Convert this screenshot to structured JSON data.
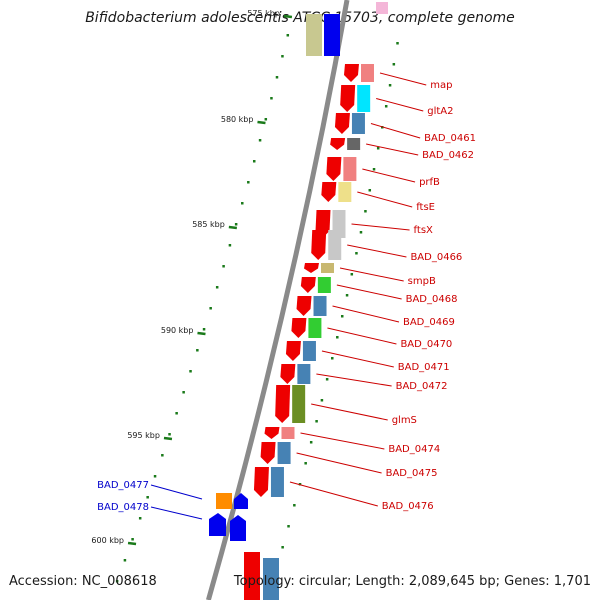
{
  "title": "Bifidobacterium adolescentis ATCC 15703, complete genome",
  "footer": {
    "accession": "Accession: NC_008618",
    "summary": "Topology: circular; Length: 2,089,645 bp; Genes: 1,701"
  },
  "colors": {
    "backbone": "#8a8a8a",
    "forward_label": "#cc0000",
    "reverse_label": "#0000cc",
    "tick": "#1a7a1a",
    "forward_gene": "#ee0000",
    "reverse_gene": "#0000ee"
  },
  "scale": {
    "unit": "kbp",
    "labels": [
      {
        "text": "575 kbp",
        "kbp": 575
      },
      {
        "text": "580 kbp",
        "kbp": 580
      },
      {
        "text": "585 kbp",
        "kbp": 585
      },
      {
        "text": "590 kbp",
        "kbp": 590
      },
      {
        "text": "595 kbp",
        "kbp": 595
      },
      {
        "text": "600 kbp",
        "kbp": 600
      }
    ]
  },
  "genes": [
    {
      "name": "map",
      "strand": "forward",
      "cog_color": "#f08080"
    },
    {
      "name": "gltA2",
      "strand": "forward",
      "cog_color": "#00e5ff"
    },
    {
      "name": "BAD_0461",
      "strand": "forward",
      "cog_color": "#4682b4"
    },
    {
      "name": "BAD_0462",
      "strand": "forward",
      "cog_color": "#666666"
    },
    {
      "name": "prfB",
      "strand": "forward",
      "cog_color": "#f08080"
    },
    {
      "name": "ftsE",
      "strand": "forward",
      "cog_color": "#eee08a"
    },
    {
      "name": "ftsX",
      "strand": "forward",
      "cog_color": "#c8c8c8"
    },
    {
      "name": "BAD_0466",
      "strand": "forward",
      "cog_color": "#c8c8c8"
    },
    {
      "name": "smpB",
      "strand": "forward",
      "cog_color": "#c8b870"
    },
    {
      "name": "BAD_0468",
      "strand": "forward",
      "cog_color": "#32cd32"
    },
    {
      "name": "BAD_0469",
      "strand": "forward",
      "cog_color": "#4682b4"
    },
    {
      "name": "BAD_0470",
      "strand": "forward",
      "cog_color": "#32cd32"
    },
    {
      "name": "BAD_0471",
      "strand": "forward",
      "cog_color": "#4682b4"
    },
    {
      "name": "BAD_0472",
      "strand": "forward",
      "cog_color": "#4682b4"
    },
    {
      "name": "glmS",
      "strand": "forward",
      "cog_color": "#6b8e23"
    },
    {
      "name": "BAD_0474",
      "strand": "forward",
      "cog_color": "#f08080"
    },
    {
      "name": "BAD_0475",
      "strand": "forward",
      "cog_color": "#4682b4"
    },
    {
      "name": "BAD_0476",
      "strand": "forward",
      "cog_color": "#4682b4"
    },
    {
      "name": "BAD_0477",
      "strand": "reverse",
      "cog_color": "#ff8c00"
    },
    {
      "name": "BAD_0478",
      "strand": "reverse",
      "cog_color": "#0000ee"
    }
  ]
}
